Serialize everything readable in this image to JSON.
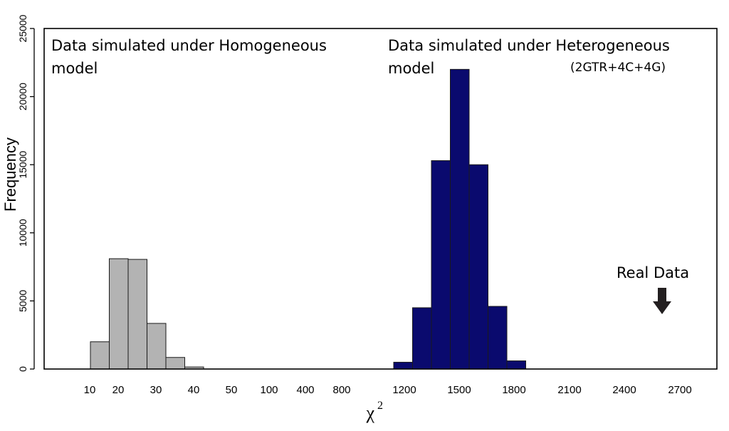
{
  "chart_data": {
    "type": "bar",
    "title": "",
    "xlabel": "χ",
    "xlabel_superscript": "2",
    "ylabel": "Frequency",
    "ylim": [
      0,
      25000
    ],
    "yticks": [
      0,
      5000,
      10000,
      15000,
      20000,
      25000
    ],
    "grid": false,
    "x_tick_labels": [
      "10",
      "20",
      "30",
      "40",
      "50",
      "100",
      "400",
      "800",
      "1200",
      "1500",
      "1800",
      "2100",
      "2400",
      "2700"
    ],
    "series": [
      {
        "color": "#b3b3b3",
        "bins": [
          {
            "from": "10",
            "to": "20",
            "value": 2000
          },
          {
            "from": "20",
            "to": "20",
            "value": 8100
          },
          {
            "from": "20",
            "to": "30",
            "value": 8050
          },
          {
            "from": "30",
            "to": "30",
            "value": 3350
          },
          {
            "from": "30",
            "to": "40",
            "value": 850
          },
          {
            "from": "40",
            "to": "40",
            "value": 150
          }
        ]
      },
      {
        "color": "#0a0a6e",
        "bins": [
          {
            "from": "1200",
            "to": "1200",
            "value": 500
          },
          {
            "from": "1200",
            "to": "1500",
            "value": 4500
          },
          {
            "from": "1200",
            "to": "1500",
            "value": 15300
          },
          {
            "from": "1500",
            "to": "1500",
            "value": 22000
          },
          {
            "from": "1500",
            "to": "1800",
            "value": 15000
          },
          {
            "from": "1500",
            "to": "1800",
            "value": 4600
          },
          {
            "from": "1800",
            "to": "1800",
            "value": 600
          }
        ]
      }
    ],
    "annotations": {
      "homogeneous_line1": "Data simulated under Homogeneous",
      "homogeneous_line2": "model",
      "heterogeneous_line1": "Data simulated under Heterogeneous",
      "heterogeneous_line2": "model",
      "heterogeneous_detail": "(2GTR+4C+4G)",
      "real_data": "Real Data"
    }
  }
}
